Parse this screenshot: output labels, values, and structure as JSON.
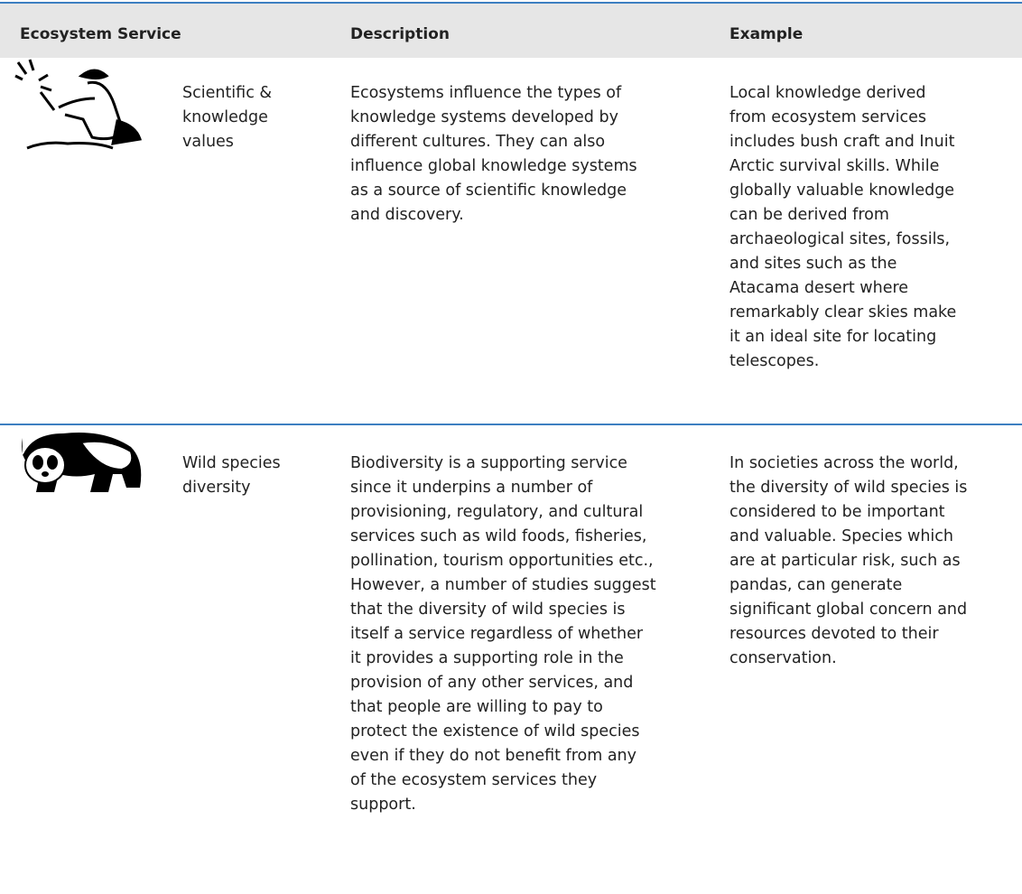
{
  "table": {
    "header": [
      "Ecosystem Service",
      "Description",
      "Example"
    ],
    "rows": [
      {
        "service": [
          "Scientific &",
          "knowledge",
          "values"
        ],
        "description": [
          "Ecosystems influence the types of",
          "knowledge systems developed by",
          "different cultures. They can also",
          "influence global knowledge systems",
          "as a source of scientific knowledge",
          "and discovery."
        ],
        "example": [
          "Local knowledge derived",
          "from ecosystem services",
          "includes bush craft and Inuit",
          "Arctic survival skills. While",
          "globally valuable knowledge",
          "can be derived from",
          "archaeological sites, fossils,",
          "and sites such as the",
          "Atacama desert where",
          "remarkably clear skies make",
          "it an ideal site for locating",
          "telescopes."
        ]
      },
      {
        "service": [
          "Wild species",
          "diversity"
        ],
        "description": [
          "Biodiversity is a supporting service",
          "since it underpins a number of",
          "provisioning, regulatory, and cultural",
          "services such as wild foods, fisheries,",
          "pollination, tourism opportunities etc.,",
          "However, a number of studies suggest",
          "that the diversity of wild species is",
          "itself a service regardless of whether",
          "it provides a supporting role in the",
          "provision of any other services, and",
          "that people are willing to pay to",
          "protect the existence of wild species",
          "even if they do not benefit from any",
          "of the ecosystem services they",
          "support."
        ],
        "example": [
          "In societies across the world,",
          "the diversity of wild species is",
          "considered to be important",
          "and valuable. Species which",
          "are at particular risk, such as",
          "pandas, can generate",
          "significant global concern and",
          "resources devoted to their",
          "conservation."
        ]
      }
    ]
  }
}
